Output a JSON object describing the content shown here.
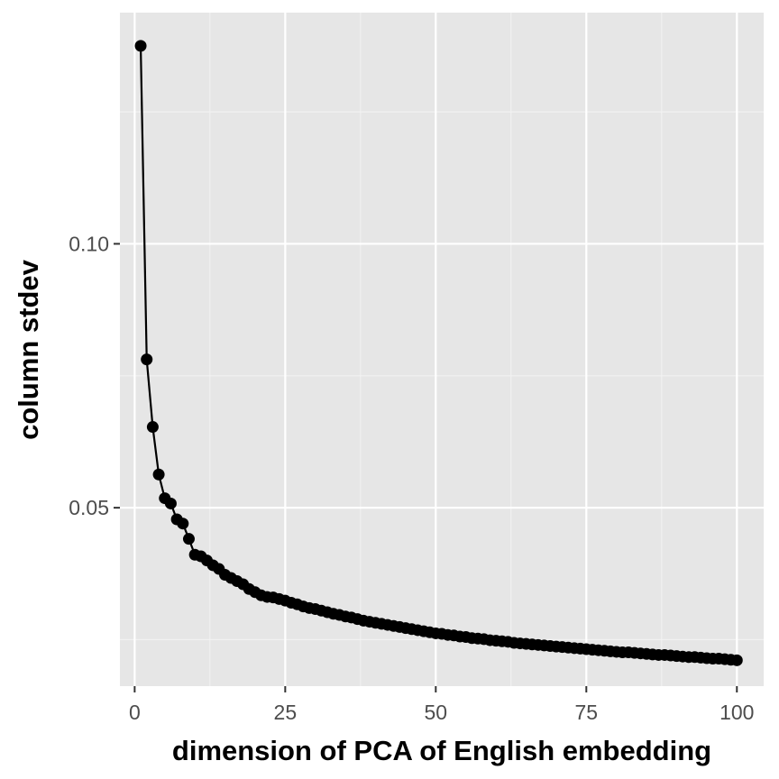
{
  "chart_data": {
    "type": "line",
    "title": "",
    "xlabel": "dimension of PCA of English embedding",
    "ylabel": "column stdev",
    "xlim": [
      -2.45,
      104.45
    ],
    "ylim": [
      0.0162,
      0.1438
    ],
    "x_ticks": [
      0,
      25,
      50,
      75,
      100
    ],
    "x_tick_labels": [
      "0",
      "25",
      "50",
      "75",
      "100"
    ],
    "y_ticks": [
      0.05,
      0.1
    ],
    "y_tick_labels": [
      "0.05",
      "0.10"
    ],
    "grid": true,
    "legend": "none",
    "series": [
      {
        "markers": true,
        "x": [
          1,
          2,
          3,
          4,
          5,
          6,
          7,
          8,
          9,
          10,
          11,
          12,
          13,
          14,
          15,
          16,
          17,
          18,
          19,
          20,
          21,
          22,
          23,
          24,
          25,
          26,
          27,
          28,
          29,
          30,
          31,
          32,
          33,
          34,
          35,
          36,
          37,
          38,
          39,
          40,
          41,
          42,
          43,
          44,
          45,
          46,
          47,
          48,
          49,
          50,
          51,
          52,
          53,
          54,
          55,
          56,
          57,
          58,
          59,
          60,
          61,
          62,
          63,
          64,
          65,
          66,
          67,
          68,
          69,
          70,
          71,
          72,
          73,
          74,
          75,
          76,
          77,
          78,
          79,
          80,
          81,
          82,
          83,
          84,
          85,
          86,
          87,
          88,
          89,
          90,
          91,
          92,
          93,
          94,
          95,
          96,
          97,
          98,
          99,
          100
        ],
        "y": [
          0.1375,
          0.0781,
          0.0653,
          0.0563,
          0.0518,
          0.0508,
          0.0478,
          0.047,
          0.0441,
          0.0411,
          0.0408,
          0.04,
          0.0391,
          0.0384,
          0.0373,
          0.0367,
          0.0361,
          0.0355,
          0.0346,
          0.034,
          0.0334,
          0.0331,
          0.033,
          0.0327,
          0.0324,
          0.032,
          0.0317,
          0.0313,
          0.031,
          0.0308,
          0.0305,
          0.0302,
          0.0299,
          0.0297,
          0.0294,
          0.0292,
          0.0289,
          0.0286,
          0.0284,
          0.0282,
          0.028,
          0.0278,
          0.0276,
          0.0274,
          0.0272,
          0.027,
          0.0268,
          0.0266,
          0.0264,
          0.0262,
          0.0261,
          0.0259,
          0.0258,
          0.0256,
          0.0255,
          0.0253,
          0.0252,
          0.0251,
          0.0249,
          0.0248,
          0.0247,
          0.0246,
          0.0244,
          0.0243,
          0.0242,
          0.0241,
          0.024,
          0.0239,
          0.0238,
          0.0237,
          0.0236,
          0.0235,
          0.0234,
          0.0233,
          0.0232,
          0.0231,
          0.023,
          0.0229,
          0.0228,
          0.0227,
          0.0226,
          0.0226,
          0.0225,
          0.0224,
          0.0223,
          0.0222,
          0.0221,
          0.0221,
          0.022,
          0.0219,
          0.0218,
          0.0217,
          0.0217,
          0.0216,
          0.0215,
          0.0214,
          0.0214,
          0.0213,
          0.0212,
          0.0211
        ]
      }
    ]
  },
  "colors": {
    "panel_background": "#e6e6e6",
    "grid_major": "#ffffff",
    "grid_minor": "#f2f2f2",
    "series": "#000000",
    "tick_label": "#4d4d4d",
    "axis_title": "#000000"
  }
}
